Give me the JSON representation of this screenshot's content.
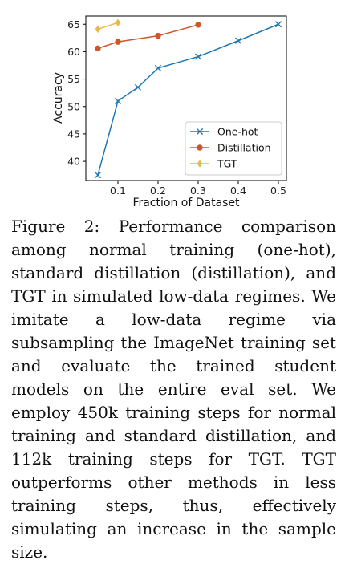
{
  "chart_data": {
    "type": "line",
    "xlabel": "Fraction of Dataset",
    "ylabel": "Accuracy",
    "xlim": [
      0.02,
      0.52
    ],
    "ylim": [
      36.5,
      66.5
    ],
    "xticks": [
      0.1,
      0.2,
      0.3,
      0.4,
      0.5
    ],
    "xtick_labels": [
      "0.1",
      "0.2",
      "0.3",
      "0.4",
      "0.5"
    ],
    "yticks": [
      40,
      45,
      50,
      55,
      60,
      65
    ],
    "ytick_labels": [
      "40",
      "45",
      "50",
      "55",
      "60",
      "65"
    ],
    "grid": false,
    "legend_position": "lower-right",
    "series": [
      {
        "name": "One-hot",
        "color": "#1f77b4",
        "marker": "x",
        "x": [
          0.05,
          0.1,
          0.15,
          0.2,
          0.3,
          0.4,
          0.5
        ],
        "y": [
          37.5,
          51.0,
          53.5,
          57.0,
          59.1,
          62.0,
          65.0
        ]
      },
      {
        "name": "Distillation",
        "color": "#d2552a",
        "marker": "circle",
        "x": [
          0.05,
          0.1,
          0.2,
          0.3
        ],
        "y": [
          60.6,
          61.8,
          62.9,
          64.9
        ]
      },
      {
        "name": "TGT",
        "color": "#e8b84a",
        "marker": "diamond",
        "x": [
          0.05,
          0.1
        ],
        "y": [
          64.1,
          65.3
        ]
      }
    ]
  },
  "caption": {
    "text": "Figure 2: Performance comparison among normal training (one-hot), standard distillation (distillation), and TGT in simulated low-data regimes. We imitate a low-data regime via subsampling the ImageNet training set and evaluate the trained student models on the entire eval set. We employ 450k training steps for normal training and standard distillation, and 112k training steps for TGT. TGT outperforms other methods in less training steps, thus, effectively simulating an increase in the sample size."
  }
}
